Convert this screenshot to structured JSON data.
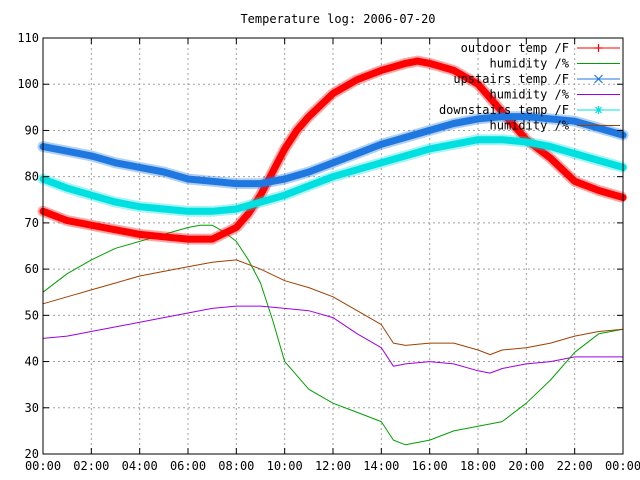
{
  "chart_data": {
    "type": "line",
    "title": "Temperature log: 2006-07-20",
    "xlabel": "",
    "ylabel": "",
    "xlim": [
      0,
      24
    ],
    "ylim": [
      20,
      110
    ],
    "grid": true,
    "legend": "top-right",
    "x_ticks": [
      "00:00",
      "02:00",
      "04:00",
      "06:00",
      "08:00",
      "10:00",
      "12:00",
      "14:00",
      "16:00",
      "18:00",
      "20:00",
      "22:00",
      "00:00"
    ],
    "y_ticks": [
      "20",
      "30",
      "40",
      "50",
      "60",
      "70",
      "80",
      "90",
      "100",
      "110"
    ],
    "series": [
      {
        "name": "outdoor temp /F",
        "color": "#ff0000",
        "marker": "plus",
        "x": [
          0,
          1,
          2,
          3,
          4,
          5,
          6,
          7,
          8,
          8.5,
          9,
          9.5,
          10,
          10.5,
          11,
          12,
          13,
          14,
          15,
          15.5,
          16,
          17,
          18,
          18.5,
          19,
          20,
          21,
          22,
          23,
          24
        ],
        "y": [
          72.5,
          70.5,
          69.5,
          68.5,
          67.5,
          67,
          66.5,
          66.5,
          69,
          72,
          76,
          81,
          86,
          90,
          93,
          98,
          101,
          103,
          104.5,
          105,
          104.5,
          103,
          100,
          97,
          94,
          88,
          84,
          79,
          77,
          75.5
        ]
      },
      {
        "name": "humidity /%",
        "color": "#00a000",
        "marker": "none",
        "x": [
          0,
          1,
          2,
          3,
          4,
          5,
          6,
          6.5,
          7,
          7.5,
          8,
          8.5,
          9,
          9.5,
          10,
          10.5,
          11,
          12,
          13,
          14,
          14.5,
          15,
          16,
          17,
          18,
          19,
          20,
          21,
          22,
          23,
          24
        ],
        "y": [
          55,
          59,
          62,
          64.5,
          66,
          67.5,
          69,
          69.5,
          69.5,
          68,
          66,
          62,
          57,
          49,
          40,
          37,
          34,
          31,
          29,
          27,
          23,
          22,
          23,
          25,
          26,
          27,
          31,
          36,
          42,
          46,
          47
        ]
      },
      {
        "name": "upstairs temp /F",
        "color": "#1f78e0",
        "marker": "cross",
        "x": [
          0,
          1,
          2,
          3,
          4,
          5,
          6,
          7,
          8,
          9,
          10,
          11,
          12,
          13,
          14,
          15,
          16,
          17,
          18,
          19,
          20,
          21,
          22,
          23,
          24
        ],
        "y": [
          86.5,
          85.5,
          84.5,
          83,
          82,
          81,
          79.5,
          79,
          78.5,
          78.5,
          79.5,
          81,
          83,
          85,
          87,
          88.5,
          90,
          91.5,
          92.5,
          93,
          93,
          92.5,
          92,
          90.5,
          89
        ]
      },
      {
        "name": "humidity /%",
        "color": "#a000e0",
        "marker": "none",
        "x": [
          0,
          1,
          2,
          3,
          4,
          5,
          6,
          7,
          8,
          9,
          10,
          11,
          12,
          13,
          14,
          14.5,
          15,
          16,
          17,
          18,
          18.5,
          19,
          20,
          21,
          22,
          23,
          24
        ],
        "y": [
          45,
          45.5,
          46.5,
          47.5,
          48.5,
          49.5,
          50.5,
          51.5,
          52,
          52,
          51.5,
          51,
          49.5,
          46,
          43,
          39,
          39.5,
          40,
          39.5,
          38,
          37.5,
          38.5,
          39.5,
          40,
          41,
          41,
          41
        ]
      },
      {
        "name": "downstairs temp /F",
        "color": "#00e0e0",
        "marker": "star",
        "x": [
          0,
          1,
          2,
          3,
          4,
          5,
          6,
          7,
          8,
          9,
          10,
          11,
          12,
          13,
          14,
          15,
          16,
          17,
          18,
          19,
          20,
          21,
          22,
          23,
          24
        ],
        "y": [
          79.5,
          77.5,
          76,
          74.5,
          73.5,
          73,
          72.5,
          72.5,
          73,
          74.5,
          76,
          78,
          80,
          81.5,
          83,
          84.5,
          86,
          87,
          88,
          88,
          87.5,
          86.5,
          85,
          83.5,
          82
        ]
      },
      {
        "name": "humidity /%",
        "color": "#a04000",
        "marker": "none",
        "x": [
          0,
          1,
          2,
          3,
          4,
          5,
          6,
          7,
          8,
          9,
          10,
          11,
          12,
          13,
          14,
          14.5,
          15,
          16,
          17,
          18,
          18.5,
          19,
          20,
          21,
          22,
          23,
          24
        ],
        "y": [
          52.5,
          54,
          55.5,
          57,
          58.5,
          59.5,
          60.5,
          61.5,
          62,
          60,
          57.5,
          56,
          54,
          51,
          48,
          44,
          43.5,
          44,
          44,
          42.5,
          41.5,
          42.5,
          43,
          44,
          45.5,
          46.5,
          47
        ]
      }
    ]
  }
}
